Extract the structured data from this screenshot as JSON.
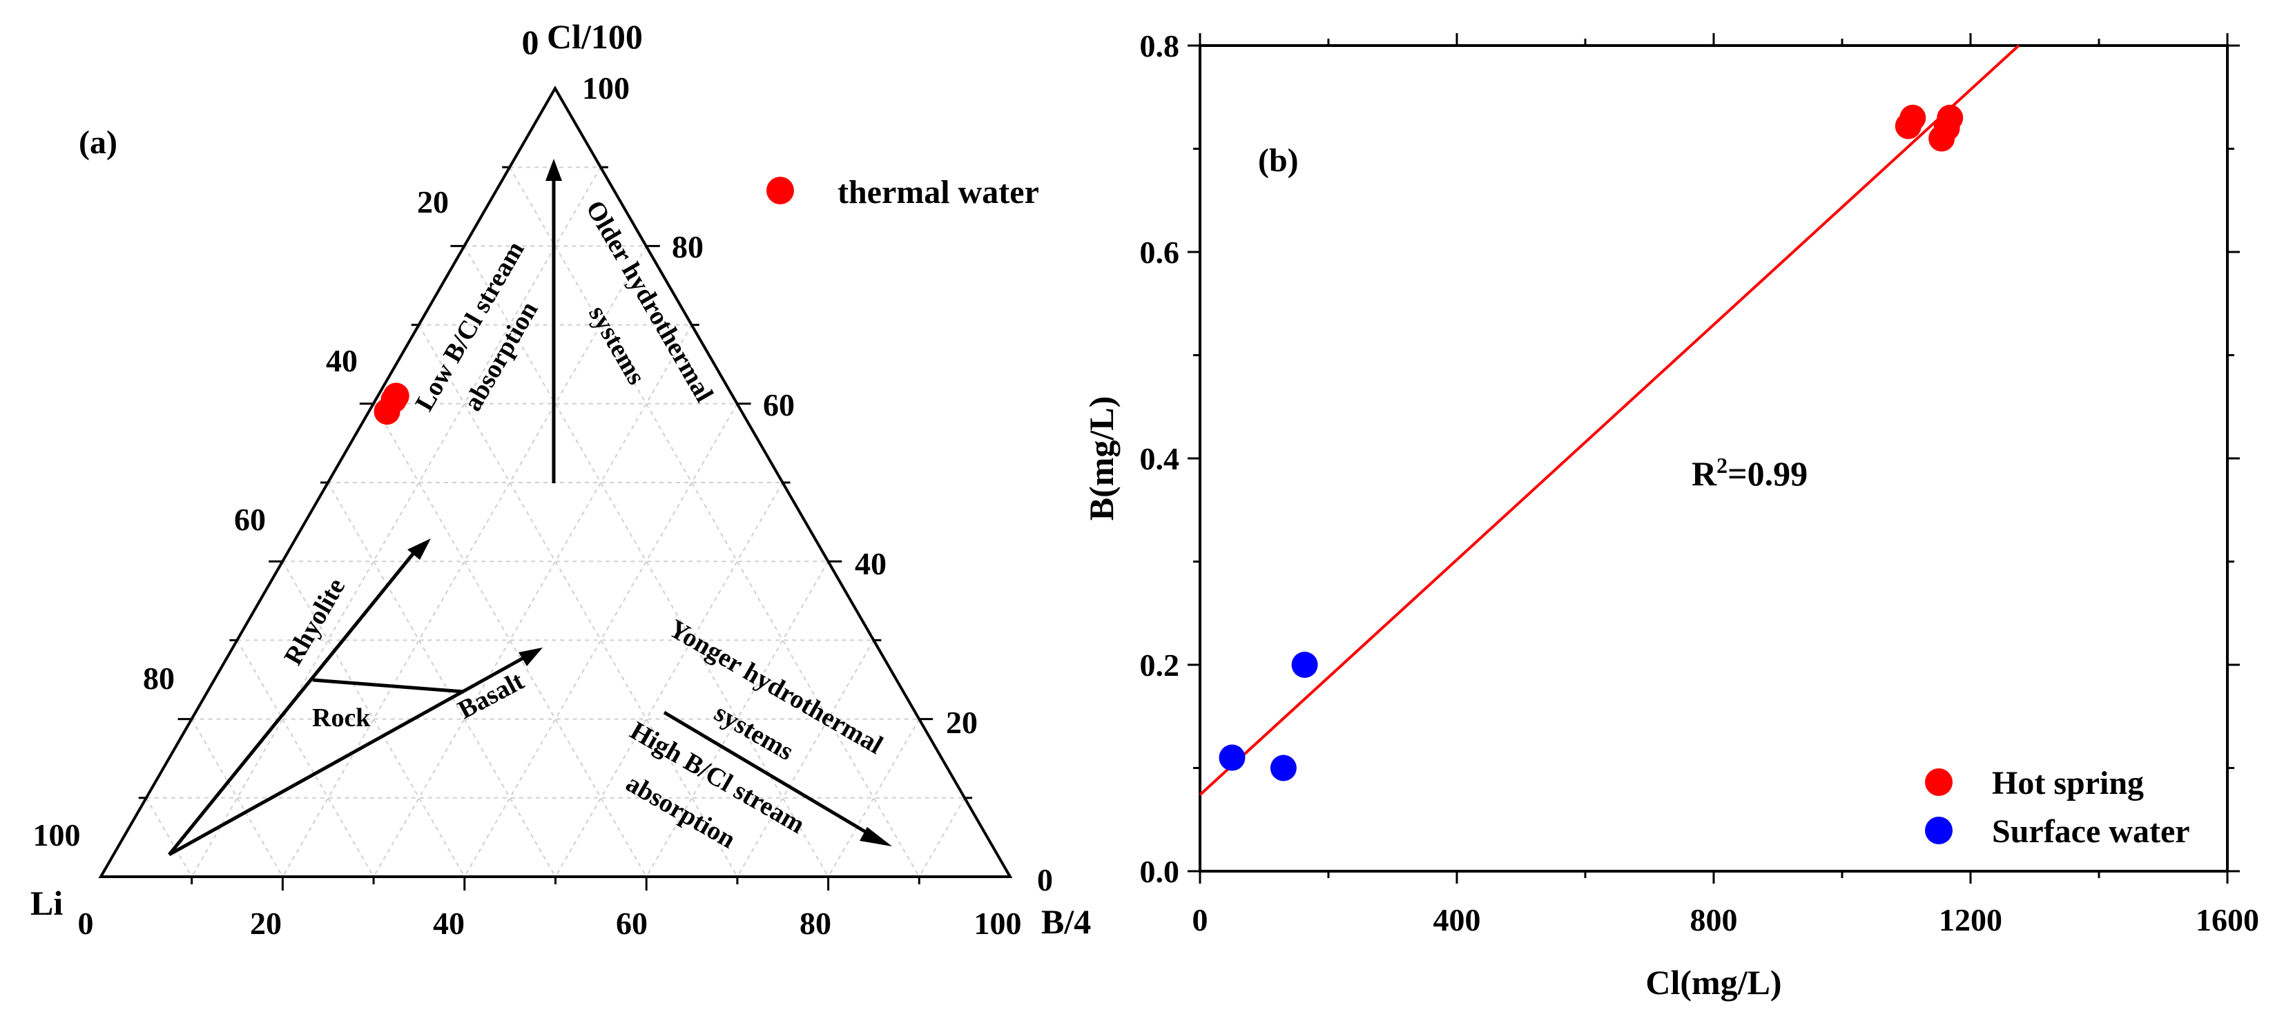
{
  "chart_data": [
    {
      "type": "ternary",
      "panel_label": "(a)",
      "axes": {
        "top": {
          "label": "Cl/100",
          "zero_label": "0"
        },
        "left": {
          "label": "Li"
        },
        "right": {
          "label": "B/4"
        },
        "bottom_ticks": [
          "0",
          "20",
          "40",
          "60",
          "80",
          "100"
        ],
        "left_ticks": [
          "20",
          "40",
          "60",
          "80",
          "100"
        ],
        "right_ticks": [
          "100",
          "80",
          "60",
          "40",
          "20",
          "0"
        ]
      },
      "grid": "dashed",
      "series": [
        {
          "name": "thermal water",
          "color": "#ff0000",
          "points": [
            {
              "cl": 59,
              "li": 39,
              "b": 2
            },
            {
              "cl": 60.5,
              "li": 37.5,
              "b": 2
            },
            {
              "cl": 61,
              "li": 37,
              "b": 2
            }
          ]
        }
      ],
      "annotations": {
        "low_b_cl_line1": "Low B/Cl stream",
        "low_b_cl_line2": "absorption",
        "older_line1": "Older hydrothermal",
        "older_line2": "systems",
        "rhyolite": "Rhyolite",
        "rock": "Rock",
        "basalt": "Basalt",
        "younger_line1": "Yonger hydrothermal",
        "younger_line2": "systems",
        "high_b_cl_line1": "High B/Cl stream",
        "high_b_cl_line2": "absorption"
      }
    },
    {
      "type": "scatter",
      "panel_label": "(b)",
      "xlabel": "Cl(mg/L)",
      "ylabel": "B(mg/L)",
      "xlim": [
        0,
        1600
      ],
      "ylim": [
        0,
        0.8
      ],
      "x_ticks": [
        "0",
        "400",
        "800",
        "1200",
        "1600"
      ],
      "y_ticks": [
        "0.0",
        "0.2",
        "0.4",
        "0.6",
        "0.8"
      ],
      "annotation_prefix": "R",
      "annotation_sup": "2",
      "annotation_suffix": "=0.99",
      "series": [
        {
          "name": "Hot spring",
          "color": "#ff0000",
          "points": [
            {
              "x": 1103,
              "y": 0.722
            },
            {
              "x": 1110,
              "y": 0.73
            },
            {
              "x": 1155,
              "y": 0.71
            },
            {
              "x": 1163,
              "y": 0.72
            },
            {
              "x": 1168,
              "y": 0.73
            }
          ]
        },
        {
          "name": "Surface water",
          "color": "#0000ff",
          "points": [
            {
              "x": 50,
              "y": 0.11
            },
            {
              "x": 130,
              "y": 0.1
            },
            {
              "x": 163,
              "y": 0.2
            }
          ]
        }
      ],
      "fit_line": {
        "color": "#ff0000",
        "x": [
          0,
          1275
        ],
        "y": [
          0.074,
          0.8
        ]
      }
    }
  ]
}
